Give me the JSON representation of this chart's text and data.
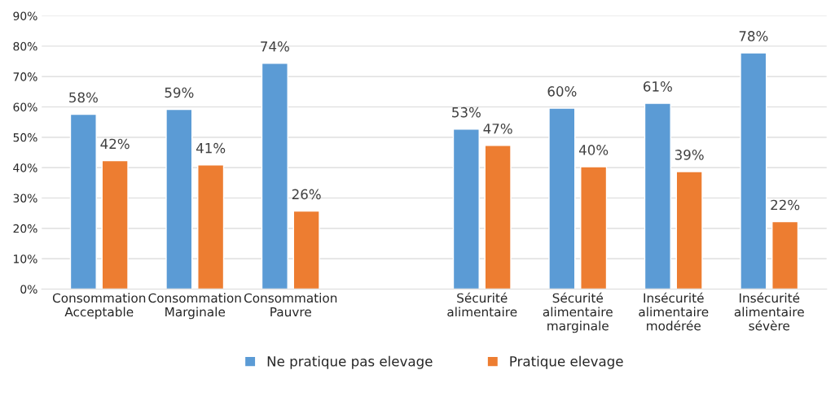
{
  "chart_data": {
    "type": "bar",
    "categories": [
      "Consommation\nAcceptable",
      "Consommation\nMarginale",
      "Consommation\nPauvre",
      null,
      "Sécurité\nalimentaire",
      "Sécurité\nalimentaire\nmarginale",
      "Insécurité\nalimentaire\nmodérée",
      "Insécurité\nalimentaire\nsévère"
    ],
    "series": [
      {
        "name": "Ne pratique pas elevage",
        "color": "#5b9bd5",
        "values": [
          57.6,
          59.2,
          74.4,
          null,
          52.7,
          59.6,
          61.2,
          77.8
        ],
        "value_labels": [
          "58%",
          "59%",
          "74%",
          null,
          "53%",
          "60%",
          "61%",
          "78%"
        ]
      },
      {
        "name": "Pratique elevage",
        "color": "#ed7d31",
        "values": [
          42.3,
          40.9,
          25.7,
          null,
          47.3,
          40.3,
          38.7,
          22.2
        ],
        "value_labels": [
          "42%",
          "41%",
          "26%",
          null,
          "47%",
          "40%",
          "39%",
          "22%"
        ]
      }
    ],
    "ylim": [
      0,
      90
    ],
    "yticks": [
      {
        "value": 0,
        "label": "0%"
      },
      {
        "value": 10,
        "label": "10%"
      },
      {
        "value": 20,
        "label": "20%"
      },
      {
        "value": 30,
        "label": "30%"
      },
      {
        "value": 40,
        "label": "40%"
      },
      {
        "value": 50,
        "label": "50%"
      },
      {
        "value": 60,
        "label": "60%"
      },
      {
        "value": 70,
        "label": "70%"
      },
      {
        "value": 80,
        "label": "80%"
      },
      {
        "value": 90,
        "label": "90%"
      }
    ],
    "grid": "y",
    "legend": "bottom"
  }
}
